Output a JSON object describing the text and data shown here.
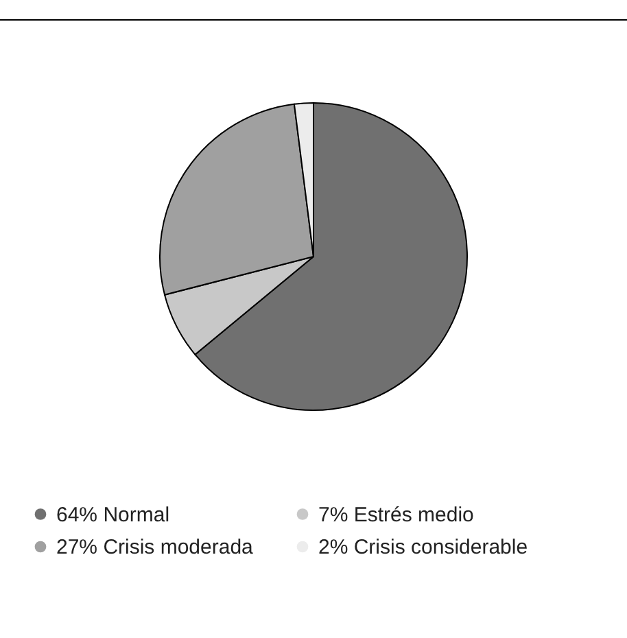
{
  "chart_data": {
    "type": "pie",
    "categories": [
      "64% Normal",
      "7% Estrés medio",
      "27% Crisis moderada",
      "2% Crisis considerable"
    ],
    "values": [
      64,
      7,
      27,
      2
    ],
    "colors": [
      "#707070",
      "#c8c8c8",
      "#a0a0a0",
      "#ececec"
    ],
    "legend": "bottom"
  }
}
